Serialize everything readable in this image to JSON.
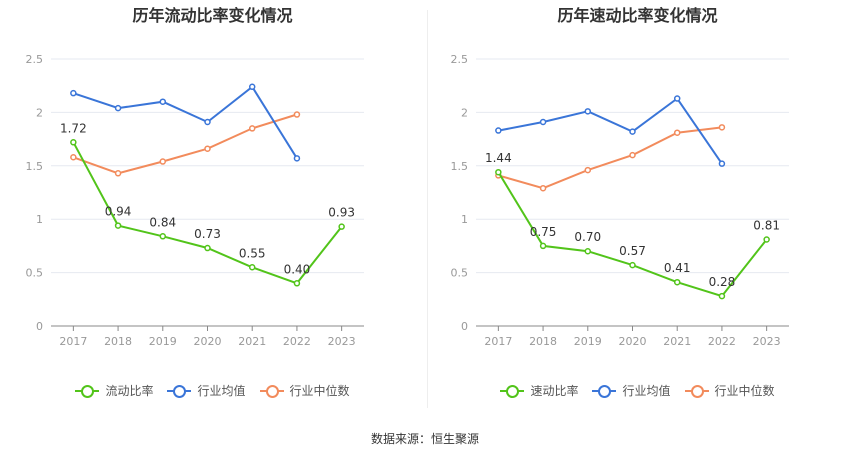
{
  "charts": [
    {
      "title": "历年流动比率变化情况",
      "chart_data": {
        "type": "line",
        "title": "历年流动比率变化情况",
        "categories": [
          "2017",
          "2018",
          "2019",
          "2020",
          "2021",
          "2022",
          "2023"
        ],
        "ylim": [
          0,
          2.5
        ],
        "yticks": [
          "0",
          "0.5",
          "1",
          "1.5",
          "2",
          "2.5"
        ],
        "grid": true,
        "legend_position": "bottom",
        "series": [
          {
            "name": "流动比率",
            "color": "#52c41a",
            "values": [
              1.72,
              0.94,
              0.84,
              0.73,
              0.55,
              0.4,
              0.93
            ],
            "labels": [
              "1.72",
              "0.94",
              "0.84",
              "0.73",
              "0.55",
              "0.40",
              "0.93"
            ]
          },
          {
            "name": "行业均值",
            "color": "#3a75d8",
            "values": [
              2.18,
              2.04,
              2.1,
              1.91,
              2.24,
              1.57,
              null
            ]
          },
          {
            "name": "行业中位数",
            "color": "#f28b5c",
            "values": [
              1.58,
              1.43,
              1.54,
              1.66,
              1.85,
              1.98,
              null
            ]
          }
        ]
      }
    },
    {
      "title": "历年速动比率变化情况",
      "chart_data": {
        "type": "line",
        "title": "历年速动比率变化情况",
        "categories": [
          "2017",
          "2018",
          "2019",
          "2020",
          "2021",
          "2022",
          "2023"
        ],
        "ylim": [
          0,
          2.5
        ],
        "yticks": [
          "0",
          "0.5",
          "1",
          "1.5",
          "2",
          "2.5"
        ],
        "grid": true,
        "legend_position": "bottom",
        "series": [
          {
            "name": "速动比率",
            "color": "#52c41a",
            "values": [
              1.44,
              0.75,
              0.7,
              0.57,
              0.41,
              0.28,
              0.81
            ],
            "labels": [
              "1.44",
              "0.75",
              "0.70",
              "0.57",
              "0.41",
              "0.28",
              "0.81"
            ]
          },
          {
            "name": "行业均值",
            "color": "#3a75d8",
            "values": [
              1.83,
              1.91,
              2.01,
              1.82,
              2.13,
              1.52,
              null
            ]
          },
          {
            "name": "行业中位数",
            "color": "#f28b5c",
            "values": [
              1.41,
              1.29,
              1.46,
              1.6,
              1.81,
              1.86,
              null
            ]
          }
        ]
      }
    }
  ],
  "source": "数据来源：恒生聚源"
}
